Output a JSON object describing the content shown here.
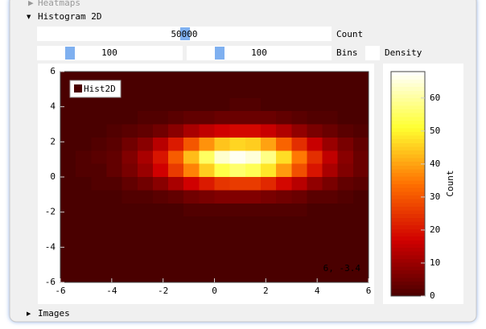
{
  "sections": [
    {
      "label": "Heatmaps"
    },
    {
      "label": "Histogram 2D"
    },
    {
      "label": "Images"
    }
  ],
  "controls": {
    "count": {
      "value": 50000,
      "label": "Count"
    },
    "bins": {
      "values": [
        100,
        100
      ],
      "label": "Bins"
    },
    "density": {
      "label": "Density",
      "checked": false
    }
  },
  "chart_data": {
    "type": "heatmap",
    "series": [
      {
        "name": "Hist2D"
      }
    ],
    "xlim": [
      -6,
      6
    ],
    "xticks": [
      -6,
      -4,
      -2,
      0,
      2,
      4,
      6
    ],
    "ylim": [
      -6,
      6
    ],
    "yticks": [
      -6,
      -4,
      -2,
      0,
      2,
      4,
      6
    ],
    "mouse_position": "6, -3.4",
    "colormap": [
      "#4a0000",
      "#d00000",
      "#ff7000",
      "#ffff30",
      "#ffffff"
    ],
    "colorbar": {
      "label": "Count",
      "lim": [
        0,
        68
      ],
      "ticks": [
        0,
        10,
        20,
        30,
        40,
        50,
        60
      ]
    },
    "values": [
      [
        0,
        0,
        0,
        0,
        0,
        0,
        0,
        0,
        0,
        0,
        0,
        0,
        0,
        0,
        0,
        0,
        0,
        0,
        0,
        0
      ],
      [
        0,
        0,
        0,
        0,
        0,
        0,
        0,
        0,
        0,
        0,
        0,
        0,
        0,
        0,
        0,
        0,
        0,
        0,
        0,
        0
      ],
      [
        0,
        0,
        0,
        0,
        0,
        0,
        0,
        0,
        0,
        0,
        0,
        1,
        1,
        0,
        0,
        0,
        0,
        0,
        0,
        0
      ],
      [
        0,
        0,
        0,
        0,
        0,
        1,
        1,
        2,
        3,
        3,
        4,
        4,
        4,
        4,
        3,
        2,
        1,
        1,
        0,
        0
      ],
      [
        0,
        0,
        0,
        1,
        2,
        3,
        5,
        8,
        12,
        15,
        17,
        18,
        18,
        16,
        13,
        9,
        6,
        4,
        2,
        1
      ],
      [
        0,
        0,
        1,
        2,
        5,
        8,
        14,
        21,
        30,
        38,
        44,
        46,
        45,
        40,
        32,
        24,
        16,
        10,
        6,
        3
      ],
      [
        0,
        1,
        2,
        3,
        7,
        12,
        20,
        31,
        43,
        55,
        64,
        67,
        65,
        58,
        47,
        35,
        24,
        15,
        8,
        4
      ],
      [
        0,
        1,
        1,
        3,
        6,
        10,
        17,
        26,
        36,
        45,
        53,
        56,
        54,
        48,
        39,
        29,
        20,
        12,
        7,
        4
      ],
      [
        0,
        0,
        1,
        1,
        3,
        5,
        8,
        12,
        17,
        21,
        25,
        26,
        26,
        23,
        18,
        14,
        9,
        6,
        3,
        2
      ],
      [
        0,
        0,
        0,
        0,
        1,
        1,
        2,
        3,
        5,
        6,
        7,
        7,
        7,
        6,
        5,
        4,
        2,
        2,
        1,
        0
      ],
      [
        0,
        0,
        0,
        0,
        0,
        0,
        0,
        0,
        1,
        1,
        1,
        1,
        1,
        1,
        1,
        1,
        0,
        0,
        0,
        0
      ],
      [
        0,
        0,
        0,
        0,
        0,
        0,
        0,
        0,
        0,
        0,
        0,
        0,
        0,
        0,
        0,
        0,
        0,
        0,
        0,
        0
      ],
      [
        0,
        0,
        0,
        0,
        0,
        0,
        0,
        0,
        0,
        0,
        0,
        0,
        0,
        0,
        0,
        0,
        0,
        0,
        0,
        0
      ],
      [
        0,
        0,
        0,
        0,
        0,
        0,
        0,
        0,
        0,
        0,
        0,
        0,
        0,
        0,
        0,
        0,
        0,
        0,
        0,
        0
      ],
      [
        0,
        0,
        0,
        0,
        0,
        0,
        0,
        0,
        0,
        0,
        0,
        0,
        0,
        0,
        0,
        0,
        0,
        0,
        0,
        0
      ],
      [
        0,
        0,
        0,
        0,
        0,
        0,
        0,
        0,
        0,
        0,
        0,
        0,
        0,
        0,
        0,
        0,
        0,
        0,
        0,
        0
      ]
    ]
  }
}
